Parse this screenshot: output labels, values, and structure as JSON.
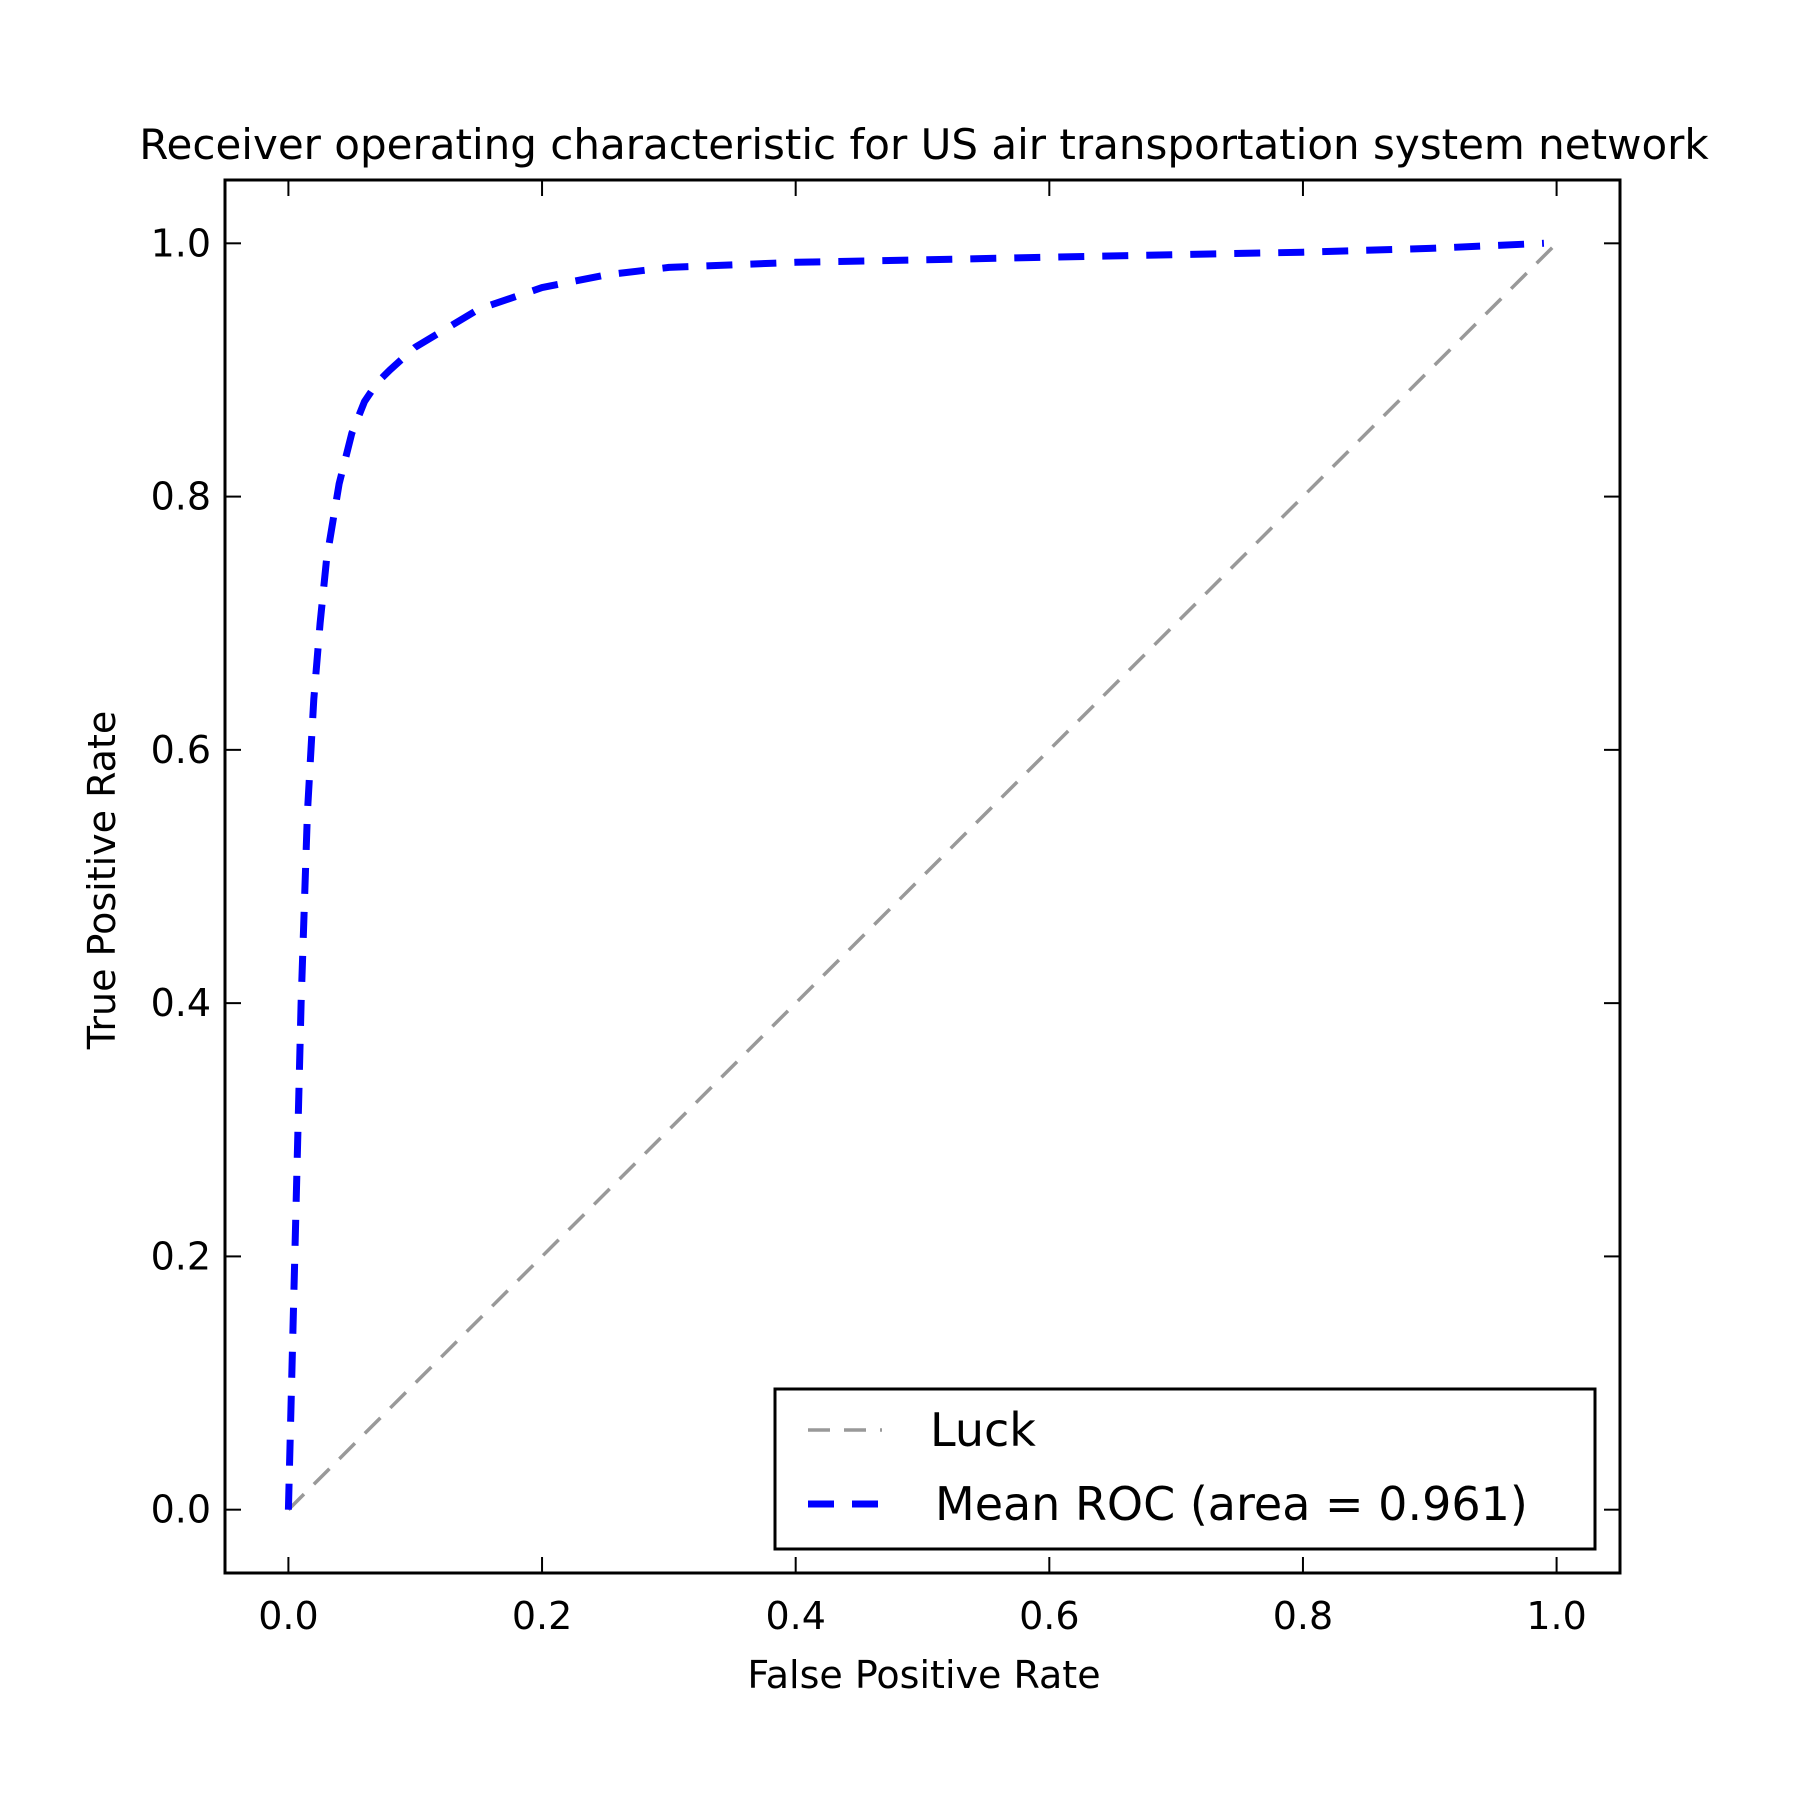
{
  "chart_data": {
    "type": "line",
    "title": "Receiver operating characteristic for US air transportation system network",
    "xlabel": "False Positive Rate",
    "ylabel": "True Positive Rate",
    "xlim": [
      -0.05,
      1.05
    ],
    "ylim": [
      -0.05,
      1.05
    ],
    "xticks": [
      0.0,
      0.2,
      0.4,
      0.6,
      0.8,
      1.0
    ],
    "yticks": [
      0.0,
      0.2,
      0.4,
      0.6,
      0.8,
      1.0
    ],
    "xtick_labels": [
      "0.0",
      "0.2",
      "0.4",
      "0.6",
      "0.8",
      "1.0"
    ],
    "ytick_labels": [
      "0.0",
      "0.2",
      "0.4",
      "0.6",
      "0.8",
      "1.0"
    ],
    "grid": false,
    "legend_position": "lower right",
    "series": [
      {
        "name": "Luck",
        "color": "#999999",
        "style": "dashed",
        "x": [
          0.0,
          1.0
        ],
        "y": [
          0.0,
          1.0
        ]
      },
      {
        "name": "Mean ROC (area = 0.961)",
        "color": "#0000ff",
        "style": "dashed",
        "x": [
          0.0,
          0.005,
          0.01,
          0.015,
          0.02,
          0.025,
          0.03,
          0.04,
          0.05,
          0.06,
          0.07,
          0.08,
          0.1,
          0.12,
          0.15,
          0.2,
          0.25,
          0.3,
          0.4,
          0.5,
          0.6,
          0.7,
          0.8,
          0.9,
          0.99
        ],
        "y": [
          0.0,
          0.2,
          0.4,
          0.55,
          0.64,
          0.7,
          0.75,
          0.81,
          0.85,
          0.875,
          0.89,
          0.9,
          0.918,
          0.93,
          0.948,
          0.965,
          0.975,
          0.981,
          0.985,
          0.987,
          0.989,
          0.991,
          0.993,
          0.996,
          1.0
        ]
      }
    ]
  }
}
